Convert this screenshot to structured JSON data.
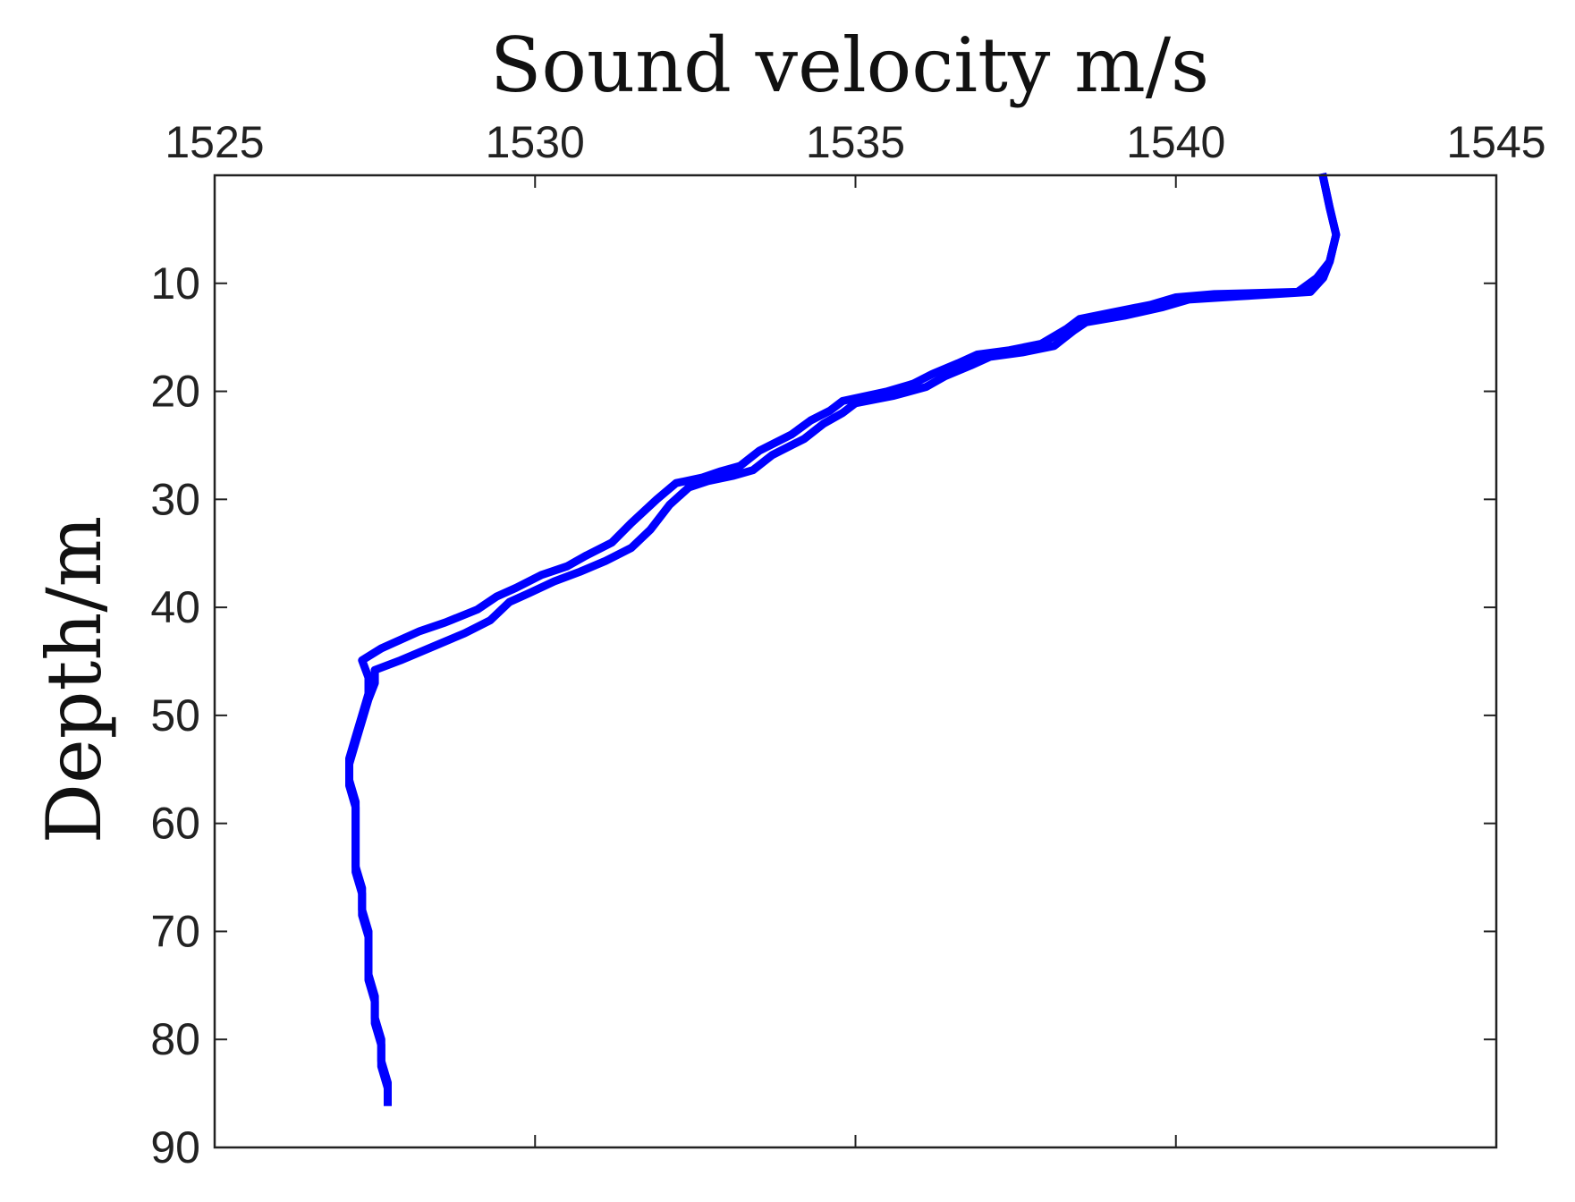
{
  "chart_data": {
    "type": "line",
    "title": "",
    "xlabel": "Sound velocity m/s",
    "ylabel": "Depth/m",
    "xlim": [
      1525,
      1545
    ],
    "ylim": [
      0,
      90
    ],
    "y_inverted": true,
    "x_axis_position": "top",
    "grid": false,
    "x_ticks": [
      {
        "value": 1525,
        "label": "1525"
      },
      {
        "value": 1530,
        "label": "1530"
      },
      {
        "value": 1535,
        "label": "1535"
      },
      {
        "value": 1540,
        "label": "1540"
      },
      {
        "value": 1545,
        "label": "1545"
      }
    ],
    "y_ticks": [
      {
        "value": 10,
        "label": "10"
      },
      {
        "value": 20,
        "label": "20"
      },
      {
        "value": 30,
        "label": "30"
      },
      {
        "value": 40,
        "label": "40"
      },
      {
        "value": 50,
        "label": "50"
      },
      {
        "value": 60,
        "label": "60"
      },
      {
        "value": 70,
        "label": "70"
      },
      {
        "value": 80,
        "label": "80"
      },
      {
        "value": 90,
        "label": "90"
      }
    ],
    "series": [
      {
        "color": "#0000ff",
        "points": [
          [
            1542.3,
            0.2
          ],
          [
            1542.4,
            3
          ],
          [
            1542.5,
            5.5
          ],
          [
            1542.4,
            8
          ],
          [
            1542.2,
            9.5
          ],
          [
            1541.9,
            10.8
          ],
          [
            1540.6,
            11
          ],
          [
            1540.0,
            11.3
          ],
          [
            1539.6,
            12
          ],
          [
            1539.0,
            12.7
          ],
          [
            1538.5,
            13.3
          ],
          [
            1538.3,
            14.2
          ],
          [
            1537.9,
            15.6
          ],
          [
            1537.4,
            16.2
          ],
          [
            1536.9,
            16.6
          ],
          [
            1536.6,
            17.4
          ],
          [
            1536.2,
            18.4
          ],
          [
            1535.9,
            19.3
          ],
          [
            1535.5,
            20.0
          ],
          [
            1534.8,
            20.9
          ],
          [
            1534.6,
            21.8
          ],
          [
            1534.3,
            22.7
          ],
          [
            1534.0,
            24.0
          ],
          [
            1533.5,
            25.5
          ],
          [
            1533.2,
            26.9
          ],
          [
            1532.9,
            27.4
          ],
          [
            1532.6,
            28.0
          ],
          [
            1532.2,
            28.5
          ],
          [
            1531.9,
            30.0
          ],
          [
            1531.5,
            32.2
          ],
          [
            1531.2,
            34.0
          ],
          [
            1530.8,
            35.2
          ],
          [
            1530.5,
            36.2
          ],
          [
            1530.1,
            37.0
          ],
          [
            1529.7,
            38.2
          ],
          [
            1529.4,
            39.0
          ],
          [
            1529.1,
            40.2
          ],
          [
            1528.6,
            41.4
          ],
          [
            1528.2,
            42.2
          ],
          [
            1527.6,
            43.8
          ],
          [
            1527.3,
            44.9
          ],
          [
            1527.4,
            46.5
          ],
          [
            1527.4,
            48.0
          ],
          [
            1527.3,
            50.0
          ],
          [
            1527.2,
            52.0
          ],
          [
            1527.1,
            54.0
          ],
          [
            1527.1,
            56.0
          ],
          [
            1527.2,
            58.0
          ],
          [
            1527.2,
            60.0
          ],
          [
            1527.2,
            62.0
          ],
          [
            1527.2,
            64.0
          ],
          [
            1527.3,
            66.0
          ],
          [
            1527.3,
            68.0
          ],
          [
            1527.4,
            70.0
          ],
          [
            1527.4,
            72.0
          ],
          [
            1527.4,
            74.0
          ],
          [
            1527.5,
            76.0
          ],
          [
            1527.5,
            78.0
          ],
          [
            1527.6,
            80.0
          ],
          [
            1527.6,
            82.0
          ],
          [
            1527.7,
            84.0
          ],
          [
            1527.7,
            85.5
          ]
        ]
      },
      {
        "color": "#0000ff",
        "points": [
          [
            1542.3,
            0.2
          ],
          [
            1542.4,
            3
          ],
          [
            1542.5,
            5.5
          ],
          [
            1542.4,
            8
          ],
          [
            1542.3,
            9.5
          ],
          [
            1542.1,
            10.8
          ],
          [
            1541.0,
            11.2
          ],
          [
            1540.2,
            11.5
          ],
          [
            1539.8,
            12.2
          ],
          [
            1539.2,
            13.0
          ],
          [
            1538.6,
            13.6
          ],
          [
            1538.4,
            14.4
          ],
          [
            1538.1,
            15.8
          ],
          [
            1537.6,
            16.4
          ],
          [
            1537.1,
            16.8
          ],
          [
            1536.8,
            17.6
          ],
          [
            1536.4,
            18.6
          ],
          [
            1536.1,
            19.6
          ],
          [
            1535.6,
            20.4
          ],
          [
            1535.0,
            21.1
          ],
          [
            1534.8,
            22.0
          ],
          [
            1534.5,
            23.0
          ],
          [
            1534.2,
            24.4
          ],
          [
            1533.7,
            25.9
          ],
          [
            1533.4,
            27.3
          ],
          [
            1533.1,
            27.8
          ],
          [
            1532.7,
            28.3
          ],
          [
            1532.4,
            28.9
          ],
          [
            1532.1,
            30.5
          ],
          [
            1531.8,
            32.8
          ],
          [
            1531.5,
            34.5
          ],
          [
            1531.1,
            35.7
          ],
          [
            1530.7,
            36.7
          ],
          [
            1530.3,
            37.6
          ],
          [
            1529.9,
            38.7
          ],
          [
            1529.6,
            39.5
          ],
          [
            1529.3,
            41.2
          ],
          [
            1528.9,
            42.4
          ],
          [
            1528.5,
            43.4
          ],
          [
            1527.9,
            44.9
          ],
          [
            1527.5,
            45.8
          ],
          [
            1527.5,
            47.0
          ],
          [
            1527.4,
            48.5
          ],
          [
            1527.3,
            50.5
          ],
          [
            1527.2,
            52.5
          ],
          [
            1527.1,
            54.5
          ],
          [
            1527.1,
            56.5
          ],
          [
            1527.2,
            58.5
          ],
          [
            1527.2,
            60.5
          ],
          [
            1527.2,
            62.5
          ],
          [
            1527.2,
            64.5
          ],
          [
            1527.3,
            66.5
          ],
          [
            1527.3,
            68.5
          ],
          [
            1527.4,
            70.5
          ],
          [
            1527.4,
            72.5
          ],
          [
            1527.4,
            74.5
          ],
          [
            1527.5,
            76.5
          ],
          [
            1527.5,
            78.5
          ],
          [
            1527.6,
            80.5
          ],
          [
            1527.6,
            82.5
          ],
          [
            1527.7,
            84.5
          ],
          [
            1527.7,
            85.8
          ]
        ]
      }
    ]
  }
}
